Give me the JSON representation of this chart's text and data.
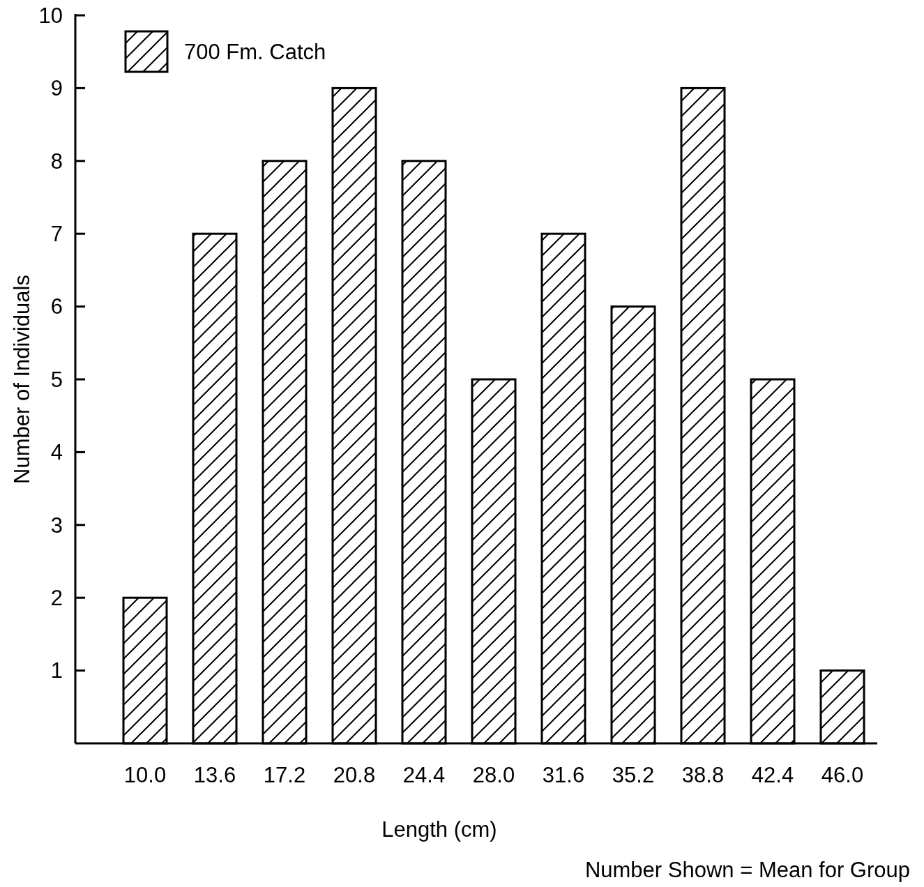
{
  "chart_data": {
    "type": "bar",
    "xlabel": "Length (cm)",
    "ylabel": "Number of Individuals",
    "categories": [
      "10.0",
      "13.6",
      "17.2",
      "20.8",
      "24.4",
      "28.0",
      "31.6",
      "35.2",
      "38.8",
      "42.4",
      "46.0"
    ],
    "series": [
      {
        "name": "700 Fm. Catch",
        "color": "#000000",
        "values": [
          2,
          7,
          8,
          9,
          8,
          5,
          7,
          6,
          9,
          5,
          1
        ]
      }
    ],
    "ylim": [
      0,
      10
    ],
    "yticks": [
      1,
      2,
      3,
      4,
      5,
      6,
      7,
      8,
      9,
      10
    ],
    "grid": false,
    "legend": "top left",
    "annotations": [
      "Number Shown = Mean for Group"
    ]
  }
}
